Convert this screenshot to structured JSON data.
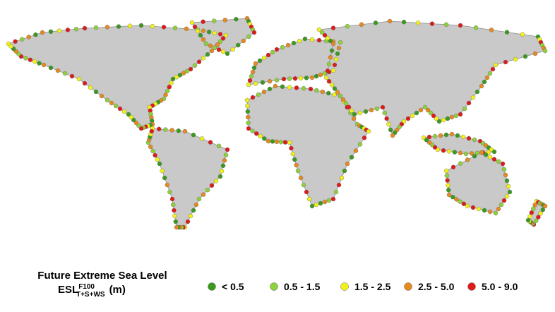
{
  "legend": {
    "title": "Future Extreme Sea Level",
    "symbol": {
      "base": "ESL",
      "sup": "F100",
      "sub": "T+S+WS",
      "unit": "(m)"
    },
    "items": [
      {
        "label": "< 0.5",
        "color": "#3a9a1e"
      },
      {
        "label": "0.5 - 1.5",
        "color": "#8fd13a"
      },
      {
        "label": "1.5 - 2.5",
        "color": "#f2f21a"
      },
      {
        "label": "2.5 - 5.0",
        "color": "#e8891e"
      },
      {
        "label": "5.0 - 9.0",
        "color": "#e01a1a"
      }
    ]
  }
}
